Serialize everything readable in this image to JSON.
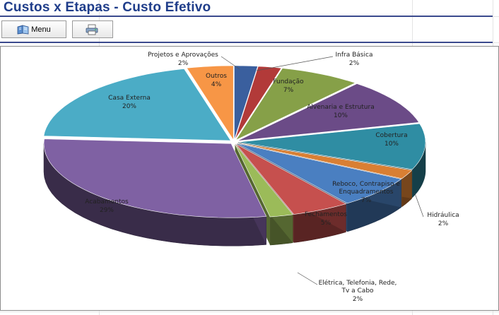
{
  "page": {
    "title": "Custos x Etapas - Custo Efetivo"
  },
  "toolbar": {
    "menu_label": "Menu",
    "menu_icon": "book-icon",
    "print_icon": "printer-icon"
  },
  "chart_data": {
    "type": "pie",
    "title": "",
    "style": "3d-exploded",
    "slices": [
      {
        "label": "Projetos e Aprovações",
        "percent_label": "2%",
        "value": 2,
        "color": "#3a5f9e"
      },
      {
        "label": "Infra Básica",
        "percent_label": "2%",
        "value": 2,
        "color": "#b23a39"
      },
      {
        "label": "Fundação",
        "percent_label": "7%",
        "value": 7,
        "color": "#86a048"
      },
      {
        "label": "Alvenaria e Estrutura",
        "percent_label": "10%",
        "value": 10,
        "color": "#6b4b87"
      },
      {
        "label": "Cobertura",
        "percent_label": "10%",
        "value": 10,
        "color": "#2f8da3"
      },
      {
        "label": "Hidráulica",
        "percent_label": "2%",
        "value": 2,
        "color": "#d97f33"
      },
      {
        "label": "Reboco, Contrapiso e Enquadramentos",
        "percent_label": "7%",
        "value": 7,
        "color": "#4a7fc1"
      },
      {
        "label": "Fechamentos",
        "percent_label": "5%",
        "value": 5,
        "color": "#c6504e"
      },
      {
        "label": "Elétrica, Telefonia, Rede, Tv a Cabo",
        "percent_label": "2%",
        "value": 2,
        "color": "#9bbb59"
      },
      {
        "label": "Acabamentos",
        "percent_label": "29%",
        "value": 29,
        "color": "#7f61a3"
      },
      {
        "label": "Casa Externa",
        "percent_label": "20%",
        "value": 20,
        "color": "#4bacc6"
      },
      {
        "label": "Outros",
        "percent_label": "4%",
        "value": 4,
        "color": "#f79646"
      }
    ]
  }
}
